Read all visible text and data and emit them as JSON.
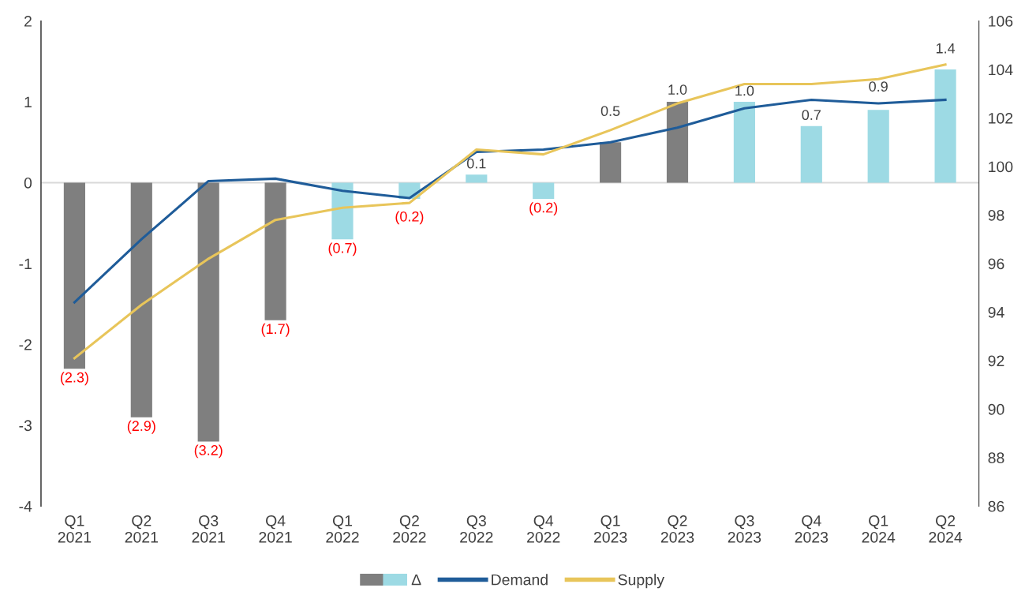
{
  "chart_data": {
    "type": "bar",
    "categories": [
      "Q1\n2021",
      "Q2\n2021",
      "Q3\n2021",
      "Q4\n2021",
      "Q1\n2022",
      "Q2\n2022",
      "Q3\n2022",
      "Q4\n2022",
      "Q1\n2023",
      "Q2\n2023",
      "Q3\n2023",
      "Q4\n2023",
      "Q1\n2024",
      "Q2\n2024"
    ],
    "series": [
      {
        "name": "Δ",
        "colors": [
          "#7f7f7f",
          "#7f7f7f",
          "#7f7f7f",
          "#7f7f7f",
          "#9ddae4",
          "#9ddae4",
          "#9ddae4",
          "#9ddae4",
          "#7f7f7f",
          "#7f7f7f",
          "#9ddae4",
          "#9ddae4",
          "#9ddae4",
          "#9ddae4"
        ],
        "values": [
          -2.3,
          -2.9,
          -3.2,
          -1.7,
          -0.7,
          -0.2,
          0.1,
          -0.2,
          0.5,
          1.0,
          1.0,
          0.7,
          0.9,
          1.4
        ],
        "value_labels": [
          "(2.3)",
          "(2.9)",
          "(3.2)",
          "(1.7)",
          "(0.7)",
          "(0.2)",
          "0.1",
          "(0.2)",
          "0.5",
          "1.0",
          "1.0",
          "0.7",
          "0.9",
          "1.4"
        ]
      },
      {
        "name": "Demand",
        "type": "line",
        "axis": "y2",
        "color": "#1f5c99",
        "values": [
          94.4,
          97.0,
          99.4,
          99.5,
          99.0,
          98.7,
          100.6,
          100.7,
          101.0,
          101.6,
          102.4,
          102.75,
          102.6,
          102.75
        ]
      },
      {
        "name": "Supply",
        "type": "line",
        "axis": "y2",
        "color": "#e8c55a",
        "values": [
          92.1,
          94.3,
          96.2,
          97.8,
          98.3,
          98.5,
          100.7,
          100.5,
          101.5,
          102.6,
          103.4,
          103.4,
          103.6,
          104.2
        ]
      }
    ],
    "ylim": [
      -4,
      2
    ],
    "yticks": [
      -4,
      -3,
      -2,
      -1,
      0,
      1,
      2
    ],
    "y2lim": [
      86,
      106
    ],
    "y2ticks": [
      86,
      88,
      90,
      92,
      94,
      96,
      98,
      100,
      102,
      104,
      106
    ],
    "ref_lines": [
      {
        "axis": "y",
        "value": 0,
        "color": "#d9d9d9"
      }
    ],
    "grid": false,
    "legend": "bottom"
  }
}
